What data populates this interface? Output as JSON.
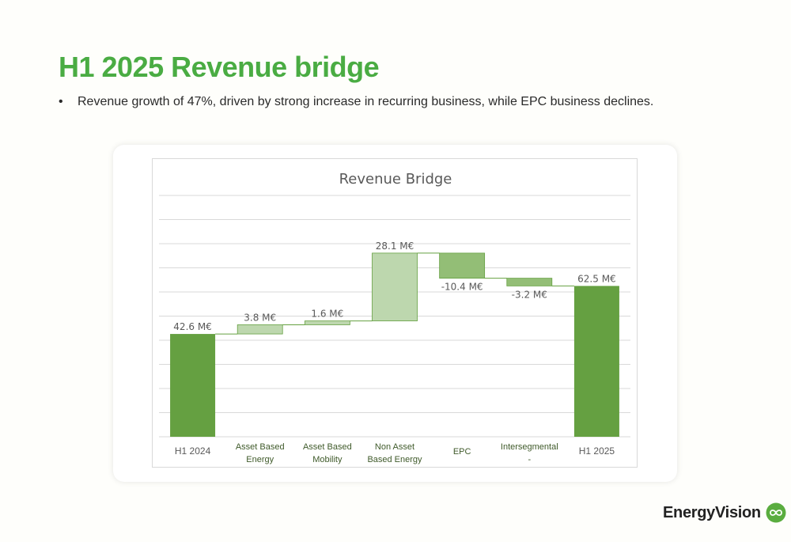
{
  "page": {
    "title": "H1 2025 Revenue bridge",
    "bullet": "Revenue growth of 47%, driven by strong increase in recurring business, while EPC business declines.",
    "logo_text": "EnergyVision",
    "logo_icon": "infinity-leaf-icon"
  },
  "colors": {
    "title_green": "#4aac43",
    "total_bar": "#65a041",
    "increase_bar": "#bdd7ae",
    "decrease_bar": "#93be76",
    "connector": "#65a041",
    "grid": "#d9d9d9"
  },
  "chart_data": {
    "type": "waterfall",
    "title": "Revenue Bridge",
    "ylim": [
      0,
      100
    ],
    "grid": true,
    "categories": [
      [
        "H1 2024"
      ],
      [
        "Asset Based",
        "Energy"
      ],
      [
        "Asset Based",
        "Mobility"
      ],
      [
        "Non Asset",
        "Based Energy"
      ],
      [
        "EPC"
      ],
      [
        "Intersegmental",
        "-"
      ],
      [
        "H1 2025"
      ]
    ],
    "values": [
      42.6,
      3.8,
      1.6,
      28.1,
      -10.4,
      -3.2,
      62.5
    ],
    "kinds": [
      "total",
      "increase",
      "increase",
      "increase",
      "decrease",
      "decrease",
      "total"
    ],
    "labels": [
      "42.6 M€",
      "3.8 M€",
      "1.6 M€",
      "28.1 M€",
      "-10.4 M€",
      "-3.2 M€",
      "62.5 M€"
    ]
  }
}
